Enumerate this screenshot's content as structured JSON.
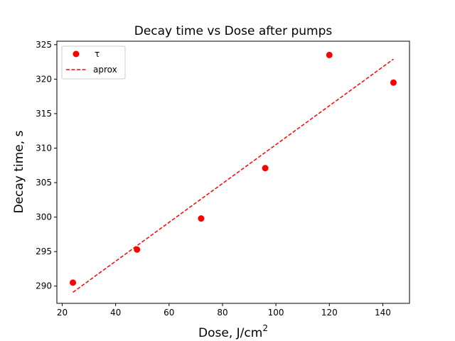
{
  "chart_data": {
    "type": "scatter",
    "title": "Decay time vs Dose after pumps",
    "xlabel": "Dose, J/cm",
    "xlabel_superscript": "2",
    "ylabel": "Decay time, s",
    "xlim": [
      18,
      150
    ],
    "ylim": [
      287.5,
      325.5
    ],
    "xticks": [
      20,
      40,
      60,
      80,
      100,
      120,
      140
    ],
    "yticks": [
      290,
      295,
      300,
      305,
      310,
      315,
      320,
      325
    ],
    "grid": false,
    "legend_position": "top-left",
    "series": [
      {
        "name": "τ",
        "kind": "scatter",
        "color": "#ff0000",
        "marker": "circle",
        "x": [
          24,
          48,
          72,
          96,
          120,
          144
        ],
        "y": [
          290.5,
          295.3,
          299.8,
          307.1,
          323.5,
          319.5
        ]
      },
      {
        "name": "aprox",
        "kind": "line",
        "style": "dashed",
        "color": "#ff0000",
        "x": [
          24,
          144
        ],
        "y": [
          289.1,
          322.9
        ]
      }
    ]
  }
}
